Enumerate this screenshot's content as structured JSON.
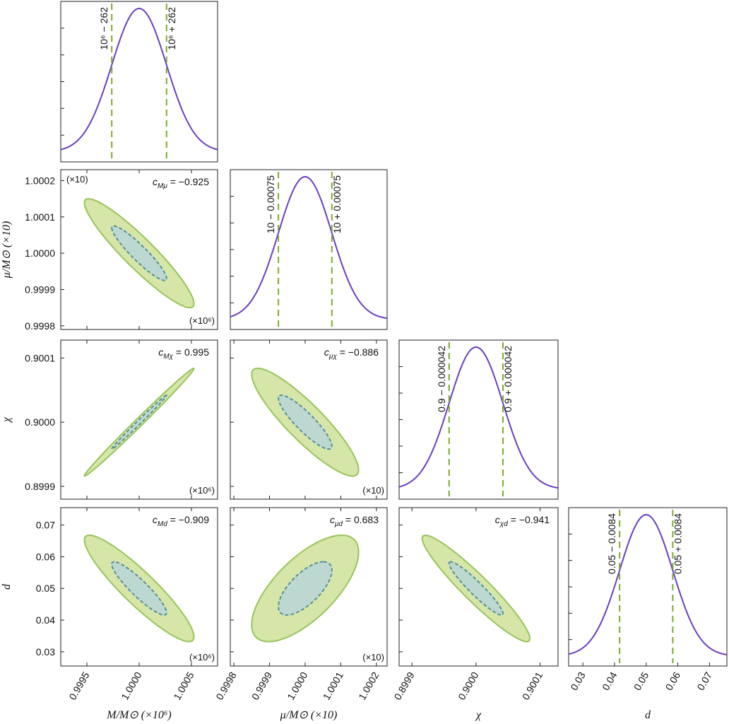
{
  "chart_data": {
    "type": "corner",
    "colors": {
      "curve": "#6a3fc2",
      "marker": "#7daa2f",
      "outer_fill": "#d5e6a8",
      "outer_stroke": "#98c45c",
      "inner_fill": "#bcd8d0",
      "inner_stroke": "#5a8f98"
    },
    "parameters": [
      {
        "id": "M",
        "axis_label": "M/M⊙ (×10⁶)",
        "center": 1.0,
        "sigma": 0.000262,
        "range": [
          0.99925,
          1.00075
        ],
        "ticks": [
          0.9995,
          1.0,
          1.0005
        ],
        "tick_labels": [
          "0.9995",
          "1.0000",
          "1.0005"
        ],
        "multiplier": "(×10⁶)",
        "marker_labels": [
          "10⁶ − 262",
          "10⁶ + 262"
        ]
      },
      {
        "id": "mu",
        "axis_label": "μ/M⊙ (×10)",
        "center": 1.0,
        "sigma": 7.5e-05,
        "range": [
          0.99979,
          1.00023
        ],
        "ticks": [
          0.9998,
          0.9999,
          1.0,
          1.0001,
          1.0002
        ],
        "tick_labels": [
          "0.9998",
          "0.9999",
          "1.0000",
          "1.0001",
          "1.0002"
        ],
        "multiplier": "(×10)",
        "marker_labels": [
          "10 − 0.00075",
          "10 + 0.00075"
        ]
      },
      {
        "id": "chi",
        "axis_label": "χ",
        "center": 0.9,
        "sigma": 4.2e-05,
        "range": [
          0.89988,
          0.900128
        ],
        "ticks": [
          0.8999,
          0.9,
          0.9001
        ],
        "tick_labels": [
          "0.8999",
          "0.9000",
          "0.9001"
        ],
        "multiplier": "",
        "marker_labels": [
          "0.9 − 0.000042",
          "0.9 + 0.000042"
        ]
      },
      {
        "id": "d",
        "axis_label": "d",
        "center": 0.05,
        "sigma": 0.0084,
        "range": [
          0.0255,
          0.0755
        ],
        "ticks": [
          0.03,
          0.04,
          0.05,
          0.06,
          0.07
        ],
        "tick_labels": [
          "0.03",
          "0.04",
          "0.05",
          "0.06",
          "0.07"
        ],
        "multiplier": "",
        "marker_labels": [
          "0.05 − 0.0084",
          "0.05 + 0.0084"
        ]
      }
    ],
    "correlations": [
      {
        "row": 1,
        "col": 0,
        "label": "c_Mμ",
        "value": -0.925,
        "text": "c = −0.925",
        "sub": "Mμ",
        "multiplier_top": "(×10)",
        "multiplier_bottom": "(×10⁶)"
      },
      {
        "row": 2,
        "col": 0,
        "label": "c_Mχ",
        "value": 0.995,
        "text": "c = 0.995",
        "sub": "Mχ",
        "multiplier_top": "",
        "multiplier_bottom": "(×10⁶)"
      },
      {
        "row": 2,
        "col": 1,
        "label": "c_μχ",
        "value": -0.886,
        "text": "c = −0.886",
        "sub": "μχ",
        "multiplier_top": "",
        "multiplier_bottom": "(×10)"
      },
      {
        "row": 3,
        "col": 0,
        "label": "c_Md",
        "value": -0.909,
        "text": "c = −0.909",
        "sub": "Md",
        "multiplier_top": "",
        "multiplier_bottom": "(×10⁶)"
      },
      {
        "row": 3,
        "col": 1,
        "label": "c_μd",
        "value": 0.683,
        "text": "c = 0.683",
        "sub": "μd",
        "multiplier_top": "",
        "multiplier_bottom": "(×10)"
      },
      {
        "row": 3,
        "col": 2,
        "label": "c_χd",
        "value": -0.941,
        "text": "c = −0.941",
        "sub": "χd",
        "multiplier_top": "",
        "multiplier_bottom": ""
      }
    ],
    "contour_levels": [
      "1σ (dashed)",
      "2σ (solid)"
    ]
  }
}
